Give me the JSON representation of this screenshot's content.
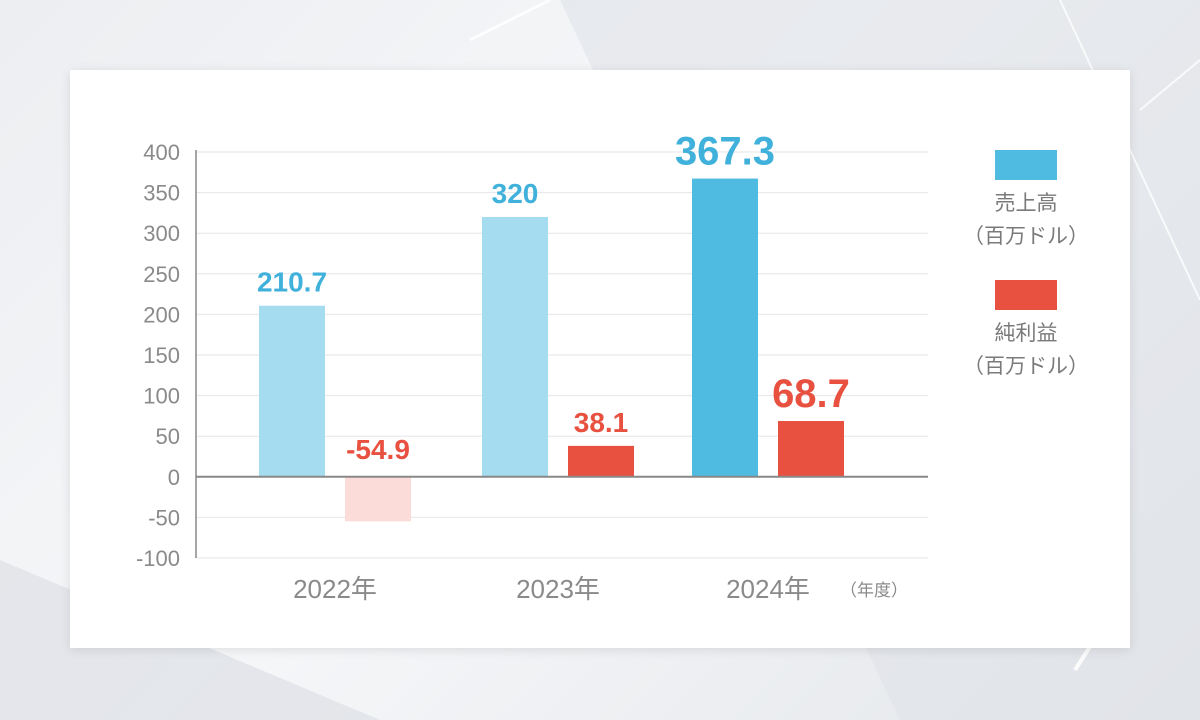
{
  "chart_data": {
    "type": "bar",
    "categories": [
      "2022年",
      "2023年",
      "2024年"
    ],
    "x_unit_label": "（年度）",
    "ylim": [
      -100,
      400
    ],
    "yticks": [
      400,
      350,
      300,
      250,
      200,
      150,
      100,
      50,
      0,
      -50,
      -100
    ],
    "grid": true,
    "legend_position": "right",
    "series": [
      {
        "name": "売上高",
        "unit": "（百万ドル）",
        "values": [
          210.7,
          320,
          367.3
        ],
        "labels": [
          "210.7",
          "320",
          "367.3"
        ],
        "color": "#4fbbe0",
        "muted_color": "#a6dcef"
      },
      {
        "name": "純利益",
        "unit": "（百万ドル）",
        "values": [
          -54.9,
          38.1,
          68.7
        ],
        "labels": [
          "-54.9",
          "38.1",
          "68.7"
        ],
        "color": "#e8503f",
        "muted_color": "#fbdcd9"
      }
    ],
    "highlight_index": 2
  }
}
